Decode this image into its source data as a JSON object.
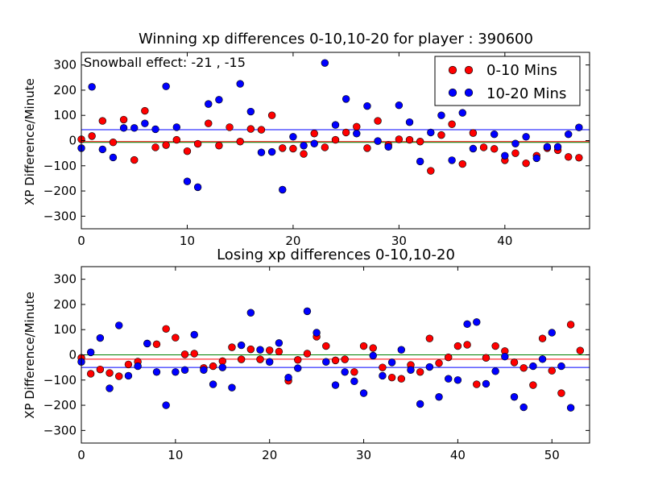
{
  "chart_data": [
    {
      "type": "scatter",
      "title": "Winning xp differences 0-10,10-20 for player : 390600",
      "ylabel": "XP Difference/Minute",
      "xlabel": "",
      "xlim": [
        0,
        48
      ],
      "ylim": [
        -350,
        350
      ],
      "xticks": [
        0,
        10,
        20,
        30,
        40
      ],
      "yticks": [
        -300,
        -200,
        -100,
        0,
        100,
        200,
        300
      ],
      "annotation": "Snowball effect: -21 , -15",
      "legend": {
        "position": "top-right",
        "entries": [
          "0-10 Mins",
          "10-20 Mins"
        ]
      },
      "series": [
        {
          "name": "0-10 Mins",
          "color": "#ff0000",
          "values": [
            5,
            18,
            78,
            -7,
            83,
            -77,
            118,
            -27,
            -18,
            3,
            -42,
            -13,
            68,
            -20,
            53,
            -4,
            46,
            43,
            100,
            -30,
            -32,
            -53,
            28,
            -27,
            3,
            32,
            55,
            -30,
            78,
            -17,
            5,
            3,
            -4,
            -120,
            22,
            65,
            -93,
            30,
            -27,
            -33,
            -78,
            -50,
            -90,
            -60,
            -30,
            -38,
            -65,
            -68
          ]
        },
        {
          "name": "10-20 Mins",
          "color": "#0000ff",
          "values": [
            -30,
            213,
            -35,
            -67,
            50,
            50,
            68,
            45,
            215,
            53,
            -162,
            -185,
            145,
            162,
            null,
            225,
            115,
            -47,
            -45,
            -195,
            15,
            -20,
            -12,
            308,
            62,
            165,
            28,
            137,
            -2,
            -25,
            140,
            73,
            -83,
            32,
            100,
            -78,
            110,
            -32,
            null,
            25,
            -60,
            -12,
            15,
            -70,
            -25,
            -25,
            25,
            52
          ]
        }
      ],
      "hlines": [
        {
          "series": "0-10 Mins",
          "y": -4,
          "color": "#ff0000"
        },
        {
          "series": "10-20 Mins",
          "y": 43,
          "color": "#0000ff"
        },
        {
          "series": "overall",
          "y": -7,
          "color": "#008000"
        }
      ]
    },
    {
      "type": "scatter",
      "title": "Losing xp differences 0-10,10-20",
      "ylabel": "XP Difference/Minute",
      "xlabel": "",
      "xlim": [
        0,
        54
      ],
      "ylim": [
        -350,
        350
      ],
      "xticks": [
        0,
        10,
        20,
        30,
        40,
        50
      ],
      "yticks": [
        -300,
        -200,
        -100,
        0,
        100,
        200,
        300
      ],
      "series": [
        {
          "name": "0-10 Mins",
          "color": "#ff0000",
          "values": [
            -12,
            -75,
            -58,
            -72,
            -85,
            -38,
            -27,
            45,
            42,
            103,
            68,
            2,
            5,
            -52,
            -45,
            -25,
            30,
            -18,
            22,
            -18,
            18,
            13,
            -103,
            -20,
            5,
            72,
            35,
            -22,
            -18,
            -68,
            35,
            27,
            -50,
            -90,
            -95,
            -40,
            -68,
            65,
            -33,
            -10,
            35,
            40,
            -117,
            -12,
            35,
            15,
            -30,
            -52,
            -120,
            65,
            -63,
            -152,
            120,
            17
          ]
        },
        {
          "name": "10-20 Mins",
          "color": "#0000ff",
          "values": [
            -28,
            10,
            67,
            -133,
            117,
            -83,
            -45,
            45,
            -68,
            -200,
            -68,
            -60,
            80,
            -60,
            -117,
            -50,
            -130,
            38,
            167,
            20,
            -28,
            47,
            -90,
            -53,
            173,
            88,
            -28,
            -120,
            -68,
            -105,
            -152,
            -3,
            -83,
            -30,
            20,
            -60,
            -195,
            -48,
            -167,
            -95,
            -100,
            122,
            130,
            -115,
            -65,
            -7,
            -167,
            -208,
            -45,
            -17,
            88,
            -45,
            -210
          ]
        }
      ],
      "hlines": [
        {
          "series": "0-10 Mins",
          "y": -17,
          "color": "#ff0000"
        },
        {
          "series": "10-20 Mins",
          "y": -50,
          "color": "#0000ff"
        },
        {
          "series": "overall",
          "y": 0,
          "color": "#008000"
        }
      ]
    }
  ]
}
